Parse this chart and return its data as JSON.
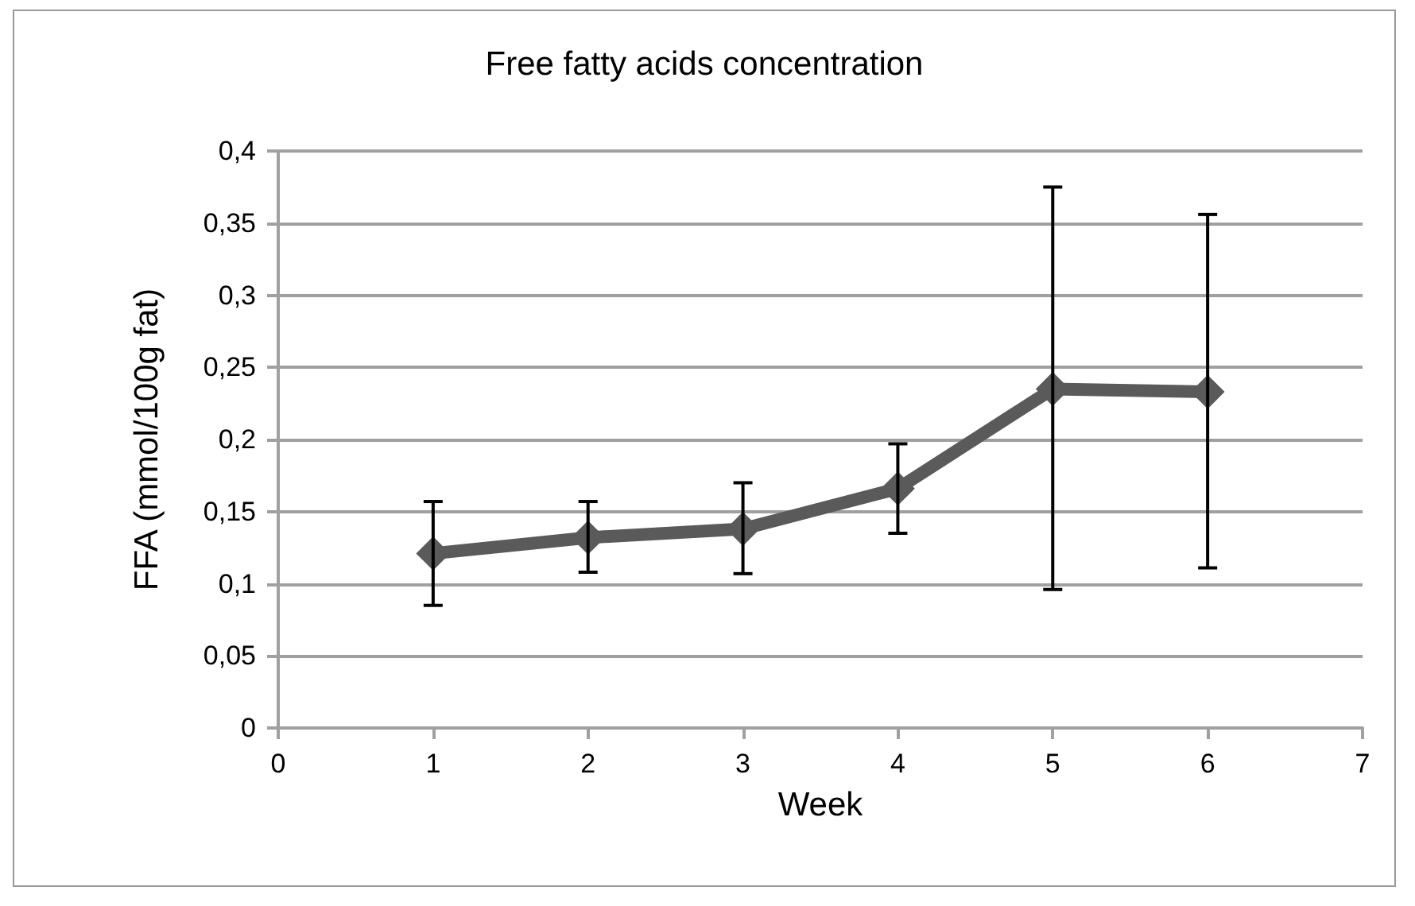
{
  "chart_data": {
    "type": "line",
    "title": "Free fatty acids concentration",
    "xlabel": "Week",
    "ylabel": "FFA (mmol/100g fat)",
    "x": [
      1,
      2,
      3,
      4,
      5,
      6
    ],
    "series": [
      {
        "color": "#5a5a5a",
        "values": [
          0.121,
          0.132,
          0.138,
          0.166,
          0.235,
          0.233
        ],
        "errors": [
          [
            0.085,
            0.157
          ],
          [
            0.108,
            0.157
          ],
          [
            0.107,
            0.17
          ],
          [
            0.135,
            0.197
          ],
          [
            0.096,
            0.375
          ],
          [
            0.111,
            0.356
          ]
        ]
      }
    ],
    "xlim": [
      0,
      7
    ],
    "xticks": [
      0,
      1,
      2,
      3,
      4,
      5,
      6,
      7
    ],
    "ylim": [
      0,
      0.4
    ],
    "yticks": [
      0,
      {
        "value": 0.05,
        "label": "0,05"
      },
      {
        "value": 0.1,
        "label": "0,1"
      },
      {
        "value": 0.15,
        "label": "0,15"
      },
      {
        "value": 0.2,
        "label": "0,2"
      },
      {
        "value": 0.25,
        "label": "0,25"
      },
      {
        "value": 0.3,
        "label": "0,3"
      },
      {
        "value": 0.35,
        "label": "0,35"
      },
      {
        "value": 0.4,
        "label": "0,4"
      }
    ],
    "grid": "y",
    "marker": "diamond",
    "line_style": "solid"
  }
}
